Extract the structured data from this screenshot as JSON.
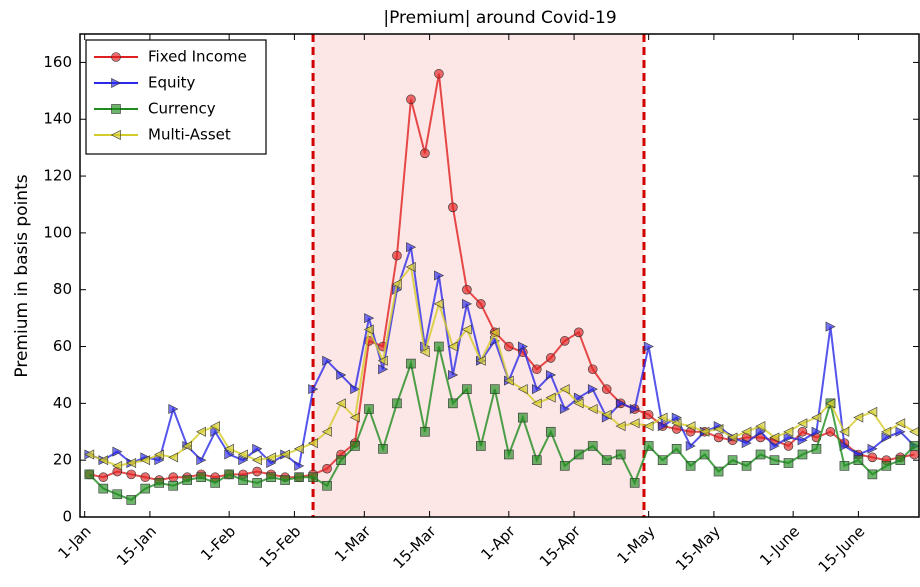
{
  "chart_data": {
    "type": "line",
    "title": "|Premium| around Covid-19",
    "ylabel": "Premium in basis points",
    "x": [
      1,
      4,
      7,
      10,
      13,
      16,
      19,
      22,
      25,
      28,
      31,
      34,
      37,
      40,
      43,
      46,
      49,
      52,
      55,
      58,
      61,
      64,
      67,
      70,
      73,
      76,
      79,
      82,
      85,
      88,
      91,
      94,
      97,
      100,
      103,
      106,
      109,
      112,
      115,
      118,
      121,
      124,
      127,
      130,
      133,
      136,
      139,
      142,
      145,
      148,
      151,
      154,
      157,
      160,
      163,
      166,
      169,
      172,
      175,
      178
    ],
    "series": [
      {
        "name": "Fixed Income",
        "color": "#e02020",
        "marker": "circle",
        "values": [
          15,
          14,
          16,
          15,
          14,
          13,
          14,
          14,
          15,
          14,
          15,
          15,
          16,
          15,
          14,
          14,
          15,
          17,
          22,
          26,
          62,
          60,
          92,
          147,
          128,
          156,
          109,
          80,
          75,
          65,
          60,
          58,
          52,
          56,
          62,
          65,
          52,
          45,
          40,
          38,
          36,
          32,
          31,
          30,
          30,
          28,
          27,
          28,
          28,
          27,
          25,
          30,
          28,
          30,
          26,
          22,
          21,
          20,
          21,
          22
        ]
      },
      {
        "name": "Equity",
        "color": "#2a2ae8",
        "marker": "triangle-right",
        "values": [
          22,
          20,
          23,
          19,
          21,
          20,
          38,
          25,
          20,
          30,
          22,
          20,
          24,
          19,
          22,
          18,
          45,
          55,
          50,
          45,
          70,
          52,
          80,
          95,
          60,
          85,
          50,
          75,
          55,
          62,
          48,
          60,
          45,
          50,
          38,
          42,
          45,
          35,
          40,
          38,
          60,
          32,
          35,
          25,
          30,
          32,
          28,
          26,
          30,
          25,
          28,
          27,
          30,
          67,
          25,
          22,
          24,
          28,
          30,
          25
        ]
      },
      {
        "name": "Currency",
        "color": "#1e8c1e",
        "marker": "square",
        "values": [
          15,
          10,
          8,
          6,
          10,
          12,
          11,
          13,
          14,
          12,
          15,
          13,
          12,
          14,
          13,
          14,
          14,
          11,
          20,
          25,
          38,
          24,
          40,
          54,
          30,
          60,
          40,
          45,
          25,
          45,
          22,
          35,
          20,
          30,
          18,
          22,
          25,
          20,
          22,
          12,
          25,
          20,
          24,
          18,
          22,
          16,
          20,
          18,
          22,
          20,
          19,
          22,
          24,
          40,
          18,
          20,
          15,
          18,
          20,
          25
        ]
      },
      {
        "name": "Multi-Asset",
        "color": "#d4cc2a",
        "marker": "triangle-left",
        "values": [
          22,
          20,
          18,
          19,
          20,
          22,
          21,
          25,
          30,
          32,
          24,
          22,
          20,
          21,
          22,
          24,
          26,
          30,
          40,
          35,
          66,
          55,
          82,
          88,
          58,
          75,
          60,
          66,
          55,
          65,
          48,
          45,
          40,
          42,
          45,
          40,
          38,
          36,
          32,
          33,
          32,
          35,
          33,
          32,
          30,
          31,
          28,
          30,
          32,
          28,
          30,
          33,
          35,
          40,
          30,
          35,
          37,
          30,
          33,
          30
        ]
      }
    ],
    "shaded_span": [
      49,
      120
    ],
    "xlim": [
      -1,
      179
    ],
    "xticks": [
      {
        "value": 0,
        "label": "1-Jan"
      },
      {
        "value": 14,
        "label": "15-Jan"
      },
      {
        "value": 31,
        "label": "1-Feb"
      },
      {
        "value": 45,
        "label": "15-Feb"
      },
      {
        "value": 60,
        "label": "1-Mar"
      },
      {
        "value": 74,
        "label": "15-Mar"
      },
      {
        "value": 91,
        "label": "1-Apr"
      },
      {
        "value": 105,
        "label": "15-Apr"
      },
      {
        "value": 121,
        "label": "1-May"
      },
      {
        "value": 135,
        "label": "15-May"
      },
      {
        "value": 152,
        "label": "1-June"
      },
      {
        "value": 166,
        "label": "15-June"
      }
    ],
    "ylim": [
      0,
      170
    ],
    "yticks": [
      0,
      20,
      40,
      60,
      80,
      100,
      120,
      140,
      160
    ],
    "legend": "upper-left"
  }
}
